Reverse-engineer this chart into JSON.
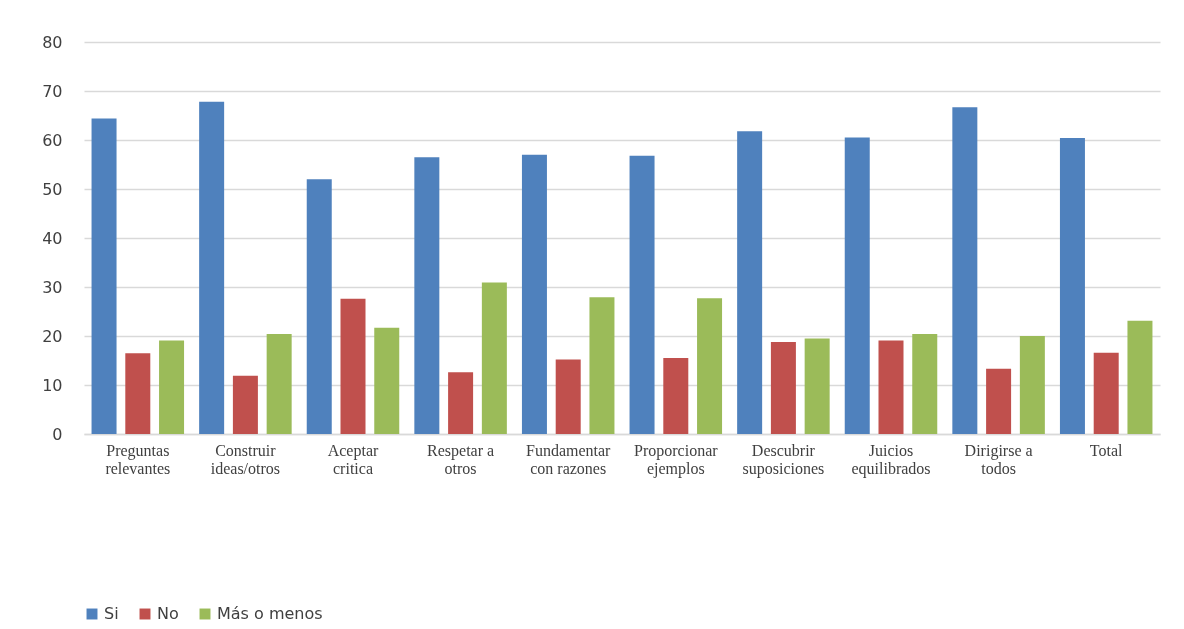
{
  "chart_data": {
    "type": "bar",
    "categories": [
      "Preguntas\nrelevantes",
      "Construir\nideas/otros",
      "Aceptar\ncritica",
      "Respetar a\notros",
      "Fundamentar\ncon razones",
      "Proporcionar\nejemplos",
      "Descubrir\nsuposiciones",
      "Juicios\nequilibrados",
      "Dirigirse a\ntodos",
      "Total"
    ],
    "series": [
      {
        "name": "Si",
        "color": "#4f81bd",
        "values": [
          64.4,
          67.8,
          52.0,
          56.5,
          57.0,
          56.8,
          61.8,
          60.5,
          66.7,
          60.4
        ]
      },
      {
        "name": "No",
        "color": "#c0504d",
        "values": [
          16.5,
          11.9,
          27.6,
          12.6,
          15.2,
          15.5,
          18.8,
          19.1,
          13.3,
          16.6
        ]
      },
      {
        "name": "Más o menos",
        "color": "#9bbb59",
        "values": [
          19.1,
          20.4,
          21.7,
          30.9,
          27.9,
          27.7,
          19.5,
          20.4,
          20.0,
          23.1
        ]
      }
    ],
    "ylim": [
      0,
      80
    ],
    "yticks": [
      0,
      10,
      20,
      30,
      40,
      50,
      60,
      70,
      80
    ],
    "grid": "y",
    "legend": "bottom"
  }
}
